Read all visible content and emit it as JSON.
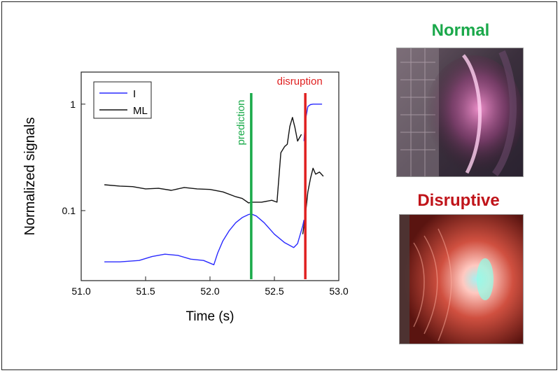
{
  "chart_data": {
    "type": "line",
    "xlabel": "Time (s)",
    "ylabel": "Normalized signals",
    "xlim": [
      51.0,
      53.0
    ],
    "ylim": [
      0.022,
      2.0
    ],
    "yscale": "log",
    "x_ticks": [
      "51.0",
      "51.5",
      "52.0",
      "52.5",
      "53.0"
    ],
    "y_ticks": [
      "0.1",
      "1"
    ],
    "legend_position": "top-left",
    "series": [
      {
        "name": "I",
        "color": "#2a2aff",
        "x": [
          51.18,
          51.3,
          51.45,
          51.55,
          51.65,
          51.75,
          51.85,
          51.95,
          52.03,
          52.06,
          52.1,
          52.15,
          52.2,
          52.25,
          52.3,
          52.32,
          52.36,
          52.42,
          52.5,
          52.58,
          52.62,
          52.65,
          52.68,
          52.72,
          52.73
        ],
        "y": [
          0.033,
          0.033,
          0.034,
          0.037,
          0.039,
          0.038,
          0.035,
          0.034,
          0.031,
          0.04,
          0.052,
          0.065,
          0.077,
          0.086,
          0.092,
          0.093,
          0.089,
          0.077,
          0.06,
          0.05,
          0.047,
          0.045,
          0.049,
          0.072,
          0.082
        ]
      },
      {
        "name": "ML",
        "color": "#111111",
        "x": [
          51.18,
          51.3,
          51.4,
          51.5,
          51.6,
          51.7,
          51.8,
          51.9,
          52.0,
          52.1,
          52.2,
          52.25,
          52.3,
          52.32,
          52.4,
          52.48,
          52.52,
          52.55,
          52.58,
          52.6,
          52.62,
          52.64,
          52.66,
          52.68,
          52.71
        ],
        "y": [
          0.175,
          0.17,
          0.168,
          0.16,
          0.162,
          0.155,
          0.165,
          0.16,
          0.158,
          0.15,
          0.135,
          0.13,
          0.118,
          0.12,
          0.12,
          0.125,
          0.12,
          0.35,
          0.4,
          0.42,
          0.62,
          0.75,
          0.6,
          0.45,
          0.52
        ]
      },
      {
        "name": "",
        "color": "#2a2aff",
        "x": [
          52.73,
          52.74,
          52.76,
          52.78,
          52.8,
          52.83,
          52.87
        ],
        "y": [
          0.45,
          0.7,
          0.95,
          0.99,
          1.0,
          1.0,
          1.0
        ]
      },
      {
        "name": "",
        "color": "#111111",
        "x": [
          52.72,
          52.74,
          52.76,
          52.78,
          52.8,
          52.82,
          52.85,
          52.88
        ],
        "y": [
          0.06,
          0.09,
          0.15,
          0.2,
          0.25,
          0.22,
          0.23,
          0.21
        ]
      }
    ],
    "markers": [
      {
        "label": "prediction",
        "x": 52.32,
        "color": "#1aaa4a"
      },
      {
        "label": "disruption",
        "x": 52.74,
        "color": "#e02020"
      }
    ]
  },
  "panels": {
    "normal": {
      "title": "Normal",
      "color": "#1aa84a"
    },
    "disruptive": {
      "title": "Disruptive",
      "color": "#c0141a"
    }
  }
}
